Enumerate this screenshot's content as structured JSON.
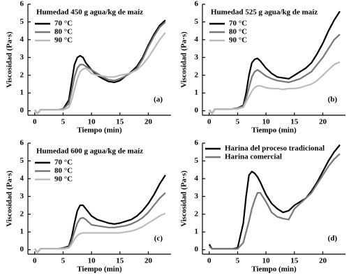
{
  "chart_data": [
    {
      "type": "line",
      "title": "Humedad 450 g agua/kg de maíz",
      "xlabel": "Tiempo (min)",
      "ylabel": "Viscosidad  (Pa·s)",
      "annotation": "(a)",
      "x": [
        0,
        0.5,
        1,
        2,
        3,
        4,
        5,
        6,
        6.5,
        7,
        7.5,
        8,
        8.5,
        9,
        10,
        11,
        12,
        13,
        14,
        15,
        16,
        17,
        18,
        19,
        20,
        21,
        22,
        23
      ],
      "series": [
        {
          "name": "70 °C",
          "color": "#000000",
          "values": [
            0.05,
            -0.15,
            0.05,
            0.05,
            0.05,
            0.05,
            0.1,
            0.6,
            1.6,
            2.6,
            3.0,
            3.1,
            3.0,
            2.7,
            2.3,
            2.0,
            1.8,
            1.65,
            1.6,
            1.7,
            1.95,
            2.2,
            2.5,
            3.0,
            3.7,
            4.3,
            4.8,
            5.1
          ]
        },
        {
          "name": "80 °C",
          "color": "#777777",
          "values": [
            0.05,
            -0.15,
            0.05,
            0.05,
            0.05,
            0.05,
            0.1,
            0.4,
            1.1,
            1.9,
            2.4,
            2.6,
            2.6,
            2.5,
            2.3,
            2.1,
            1.9,
            1.75,
            1.7,
            1.8,
            1.95,
            2.15,
            2.4,
            2.9,
            3.6,
            4.2,
            4.7,
            5.0
          ]
        },
        {
          "name": "90 °C",
          "color": "#bbbbbb",
          "values": [
            0.05,
            -0.15,
            0.05,
            0.05,
            0.05,
            0.05,
            0.05,
            0.2,
            0.6,
            1.2,
            1.8,
            2.2,
            2.35,
            2.4,
            2.1,
            2.0,
            1.95,
            1.9,
            1.9,
            2.0,
            2.05,
            2.15,
            2.3,
            2.6,
            3.0,
            3.5,
            4.0,
            4.4
          ]
        }
      ],
      "xlim": [
        -1.2,
        24
      ],
      "ylim": [
        -0.25,
        6
      ],
      "xticks": [
        0,
        5,
        10,
        15,
        20
      ],
      "yticks": [
        0,
        1,
        2,
        3,
        4,
        5,
        6
      ],
      "legend": "upper left"
    },
    {
      "type": "line",
      "title": "Humedad 525 g agua/kg de maíz",
      "xlabel": "Tiempo (min)",
      "ylabel": "Viscosidad  (Pa·s)",
      "annotation": "(b)",
      "x": [
        0,
        0.5,
        1,
        2,
        3,
        4,
        5,
        6,
        6.5,
        7,
        7.5,
        8,
        8.5,
        9,
        10,
        11,
        12,
        13,
        14,
        15,
        16,
        17,
        18,
        19,
        20,
        21,
        22,
        23
      ],
      "series": [
        {
          "name": "70 °C",
          "color": "#000000",
          "values": [
            0.05,
            -0.15,
            0.1,
            0.1,
            0.1,
            0.1,
            0.15,
            0.3,
            1.0,
            2.0,
            2.7,
            2.9,
            2.95,
            2.8,
            2.4,
            2.1,
            1.9,
            1.85,
            1.8,
            2.0,
            2.2,
            2.4,
            2.7,
            3.2,
            3.8,
            4.5,
            5.1,
            5.6
          ]
        },
        {
          "name": "80 °C",
          "color": "#777777",
          "values": [
            0.05,
            -0.15,
            0.1,
            0.1,
            0.1,
            0.1,
            0.15,
            0.25,
            0.7,
            1.3,
            1.9,
            2.2,
            2.3,
            2.2,
            1.95,
            1.8,
            1.7,
            1.65,
            1.6,
            1.7,
            1.8,
            2.0,
            2.2,
            2.6,
            3.0,
            3.5,
            4.0,
            4.3
          ]
        },
        {
          "name": "90 °C",
          "color": "#bbbbbb",
          "values": [
            0.05,
            -0.15,
            0.1,
            0.1,
            0.1,
            0.1,
            0.1,
            0.2,
            0.5,
            0.8,
            1.1,
            1.3,
            1.4,
            1.4,
            1.3,
            1.25,
            1.25,
            1.2,
            1.25,
            1.25,
            1.3,
            1.4,
            1.5,
            1.7,
            2.0,
            2.3,
            2.6,
            2.75
          ]
        }
      ],
      "xlim": [
        -1.2,
        24
      ],
      "ylim": [
        -0.25,
        6
      ],
      "xticks": [
        0,
        5,
        10,
        15,
        20
      ],
      "yticks": [
        0,
        1,
        2,
        3,
        4,
        5,
        6
      ],
      "legend": "upper left"
    },
    {
      "type": "line",
      "title": "Humedad 600 g agua/kg de maíz",
      "xlabel": "Tiempo (min)",
      "ylabel": "Viscosidad  (Pa·s)",
      "annotation": "(c)",
      "x": [
        0,
        0.5,
        1,
        2,
        3,
        4,
        5,
        6,
        6.5,
        7,
        7.5,
        8,
        8.5,
        9,
        10,
        11,
        12,
        13,
        14,
        15,
        16,
        17,
        18,
        19,
        20,
        21,
        22,
        23
      ],
      "series": [
        {
          "name": "70 °C",
          "color": "#000000",
          "values": [
            0.05,
            -0.15,
            0.05,
            0.05,
            0.05,
            0.05,
            0.1,
            0.2,
            0.7,
            1.5,
            2.2,
            2.5,
            2.5,
            2.3,
            1.9,
            1.7,
            1.6,
            1.5,
            1.45,
            1.5,
            1.6,
            1.7,
            1.9,
            2.2,
            2.6,
            3.1,
            3.7,
            4.2
          ]
        },
        {
          "name": "80 °C",
          "color": "#777777",
          "values": [
            0.05,
            -0.15,
            0.05,
            0.05,
            0.05,
            0.05,
            0.1,
            0.15,
            0.5,
            1.0,
            1.5,
            1.75,
            1.8,
            1.7,
            1.4,
            1.35,
            1.3,
            1.25,
            1.25,
            1.3,
            1.35,
            1.45,
            1.6,
            1.8,
            2.1,
            2.5,
            2.9,
            3.2
          ]
        },
        {
          "name": "90 °C",
          "color": "#bbbbbb",
          "values": [
            0.05,
            -0.15,
            0.05,
            0.05,
            0.05,
            0.05,
            0.05,
            0.1,
            0.3,
            0.6,
            0.8,
            0.9,
            0.95,
            0.95,
            0.95,
            0.95,
            0.95,
            0.95,
            0.95,
            0.95,
            1.0,
            1.05,
            1.15,
            1.3,
            1.5,
            1.7,
            1.9,
            2.05
          ]
        }
      ],
      "xlim": [
        -1.2,
        24
      ],
      "ylim": [
        -0.25,
        6
      ],
      "xticks": [
        0,
        5,
        10,
        15,
        20
      ],
      "yticks": [
        0,
        1,
        2,
        3,
        4,
        5,
        6
      ],
      "legend": "upper left"
    },
    {
      "type": "line",
      "xlabel": "Tiempo (min)",
      "ylabel": "Viscosidad  (Pa·s)",
      "annotation": "(d)",
      "x": [
        0,
        0.5,
        1,
        2,
        3,
        4,
        5,
        6,
        6.5,
        7,
        7.5,
        8,
        8.5,
        9,
        10,
        11,
        12,
        13,
        14,
        15,
        16,
        17,
        18,
        19,
        20,
        21,
        22,
        23
      ],
      "series": [
        {
          "name": "Harina del proceso tradicional",
          "color": "#000000",
          "values": [
            0.3,
            0.05,
            0.05,
            0.05,
            0.05,
            0.05,
            0.1,
            1.5,
            3.0,
            4.2,
            4.4,
            4.3,
            4.1,
            3.8,
            3.1,
            2.6,
            2.3,
            2.1,
            2.2,
            2.5,
            2.7,
            2.9,
            3.3,
            3.8,
            4.4,
            5.0,
            5.5,
            5.9
          ]
        },
        {
          "name": "Harina comercial",
          "color": "#777777",
          "values": [
            0.2,
            0.05,
            0.05,
            0.05,
            0.05,
            0.05,
            0.05,
            0.4,
            1.0,
            1.6,
            2.3,
            2.8,
            3.2,
            3.2,
            2.7,
            2.1,
            1.85,
            1.75,
            1.7,
            2.3,
            2.6,
            2.9,
            3.2,
            3.7,
            4.2,
            4.7,
            5.1,
            5.4
          ]
        }
      ],
      "xlim": [
        -1.2,
        24
      ],
      "ylim": [
        -0.25,
        6
      ],
      "xticks": [
        0,
        5,
        10,
        15,
        20
      ],
      "yticks": [
        0,
        1,
        2,
        3,
        4,
        5,
        6
      ],
      "legend": "upper left"
    }
  ]
}
